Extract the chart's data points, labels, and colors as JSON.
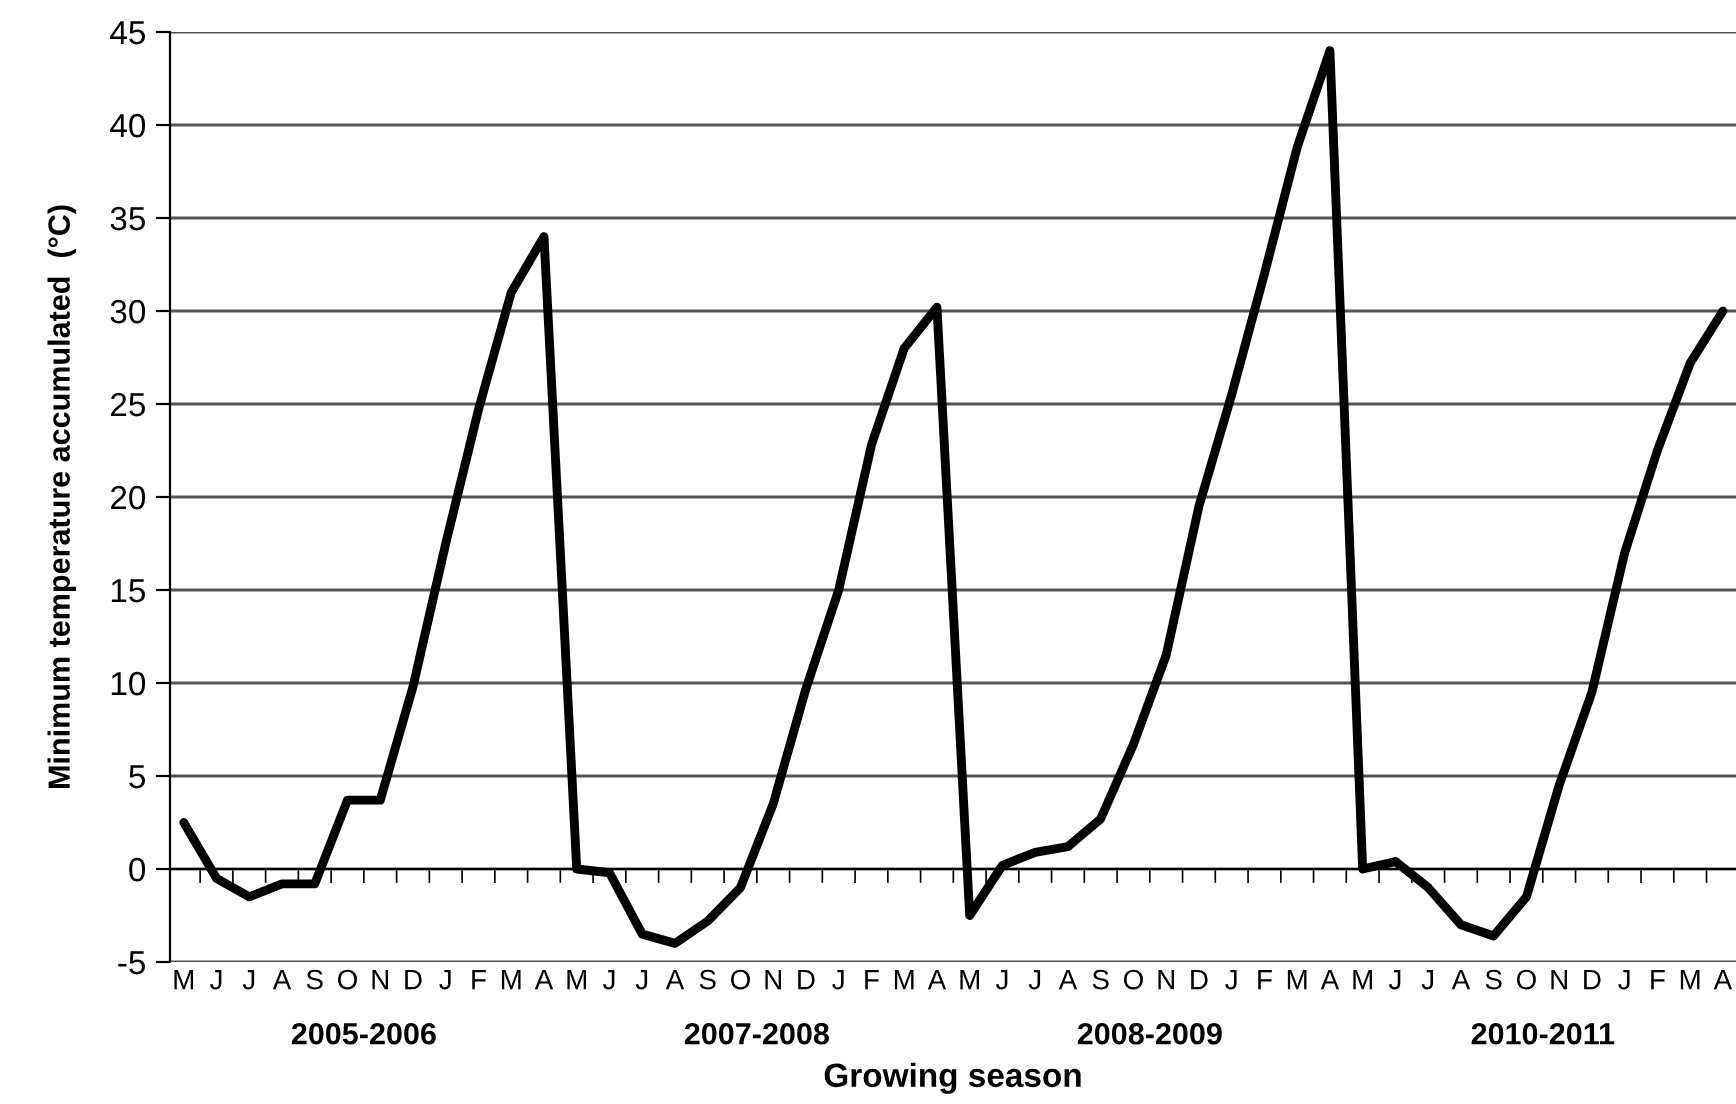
{
  "chart_data": {
    "type": "line",
    "xlabel": "Growing season",
    "ylabel": "Minimum temperature accumulated  (°C)",
    "categories": [
      "M",
      "J",
      "J",
      "A",
      "S",
      "O",
      "N",
      "D",
      "J",
      "F",
      "M",
      "A",
      "M",
      "J",
      "J",
      "A",
      "S",
      "O",
      "N",
      "D",
      "J",
      "F",
      "M",
      "A",
      "M",
      "J",
      "J",
      "A",
      "S",
      "O",
      "N",
      "D",
      "J",
      "F",
      "M",
      "A",
      "M",
      "J",
      "J",
      "A",
      "S",
      "O",
      "N",
      "D",
      "J",
      "F",
      "M",
      "A"
    ],
    "series": [
      {
        "color": "#000000",
        "values": [
          2.5,
          -0.5,
          -1.5,
          -0.8,
          -0.8,
          3.7,
          3.7,
          9.8,
          17.5,
          24.7,
          31,
          34,
          0,
          -0.2,
          -3.5,
          -4,
          -2.8,
          -1,
          3.5,
          9.7,
          15,
          22.8,
          28,
          30.2,
          -2.5,
          0.2,
          0.9,
          1.2,
          2.7,
          6.7,
          11.5,
          19.5,
          25.5,
          32,
          38.8,
          44,
          0,
          0.4,
          -1,
          -3,
          -3.6,
          -1.5,
          4.5,
          9.5,
          17,
          22.5,
          27.2,
          30
        ]
      }
    ],
    "annotations": [
      "2005-2006",
      "2007-2008",
      "2008-2009",
      "2010-2011"
    ],
    "ylim": [
      -5,
      45
    ],
    "yticks": [
      -5,
      0,
      5,
      10,
      15,
      20,
      25,
      30,
      35,
      40,
      45
    ],
    "grid": "y",
    "marker": "none",
    "line_style": "solid",
    "legend": false
  }
}
